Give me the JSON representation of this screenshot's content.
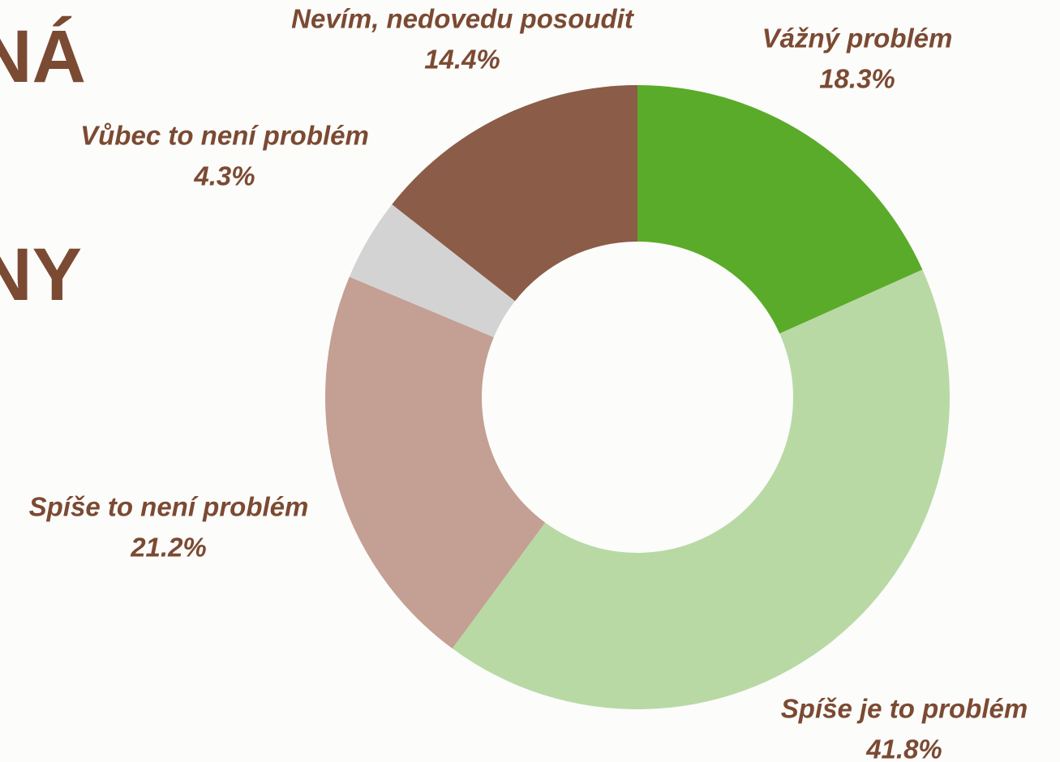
{
  "heading_fragments": [
    "NÁ",
    "NY"
  ],
  "chart_data": {
    "type": "donut",
    "categories": [
      "Vážný problém",
      "Spíše je to problém",
      "Spíše to není problém",
      "Vůbec to není problém",
      "Nevím, nedovedu posoudit"
    ],
    "values": [
      18.3,
      41.8,
      21.2,
      4.3,
      14.4
    ],
    "value_labels": [
      "18.3%",
      "41.8%",
      "21.2%",
      "4.3%",
      "14.4%"
    ],
    "colors": [
      "#5aab2a",
      "#b8d9a4",
      "#c49f93",
      "#d3d3d3",
      "#8b5c47"
    ]
  }
}
